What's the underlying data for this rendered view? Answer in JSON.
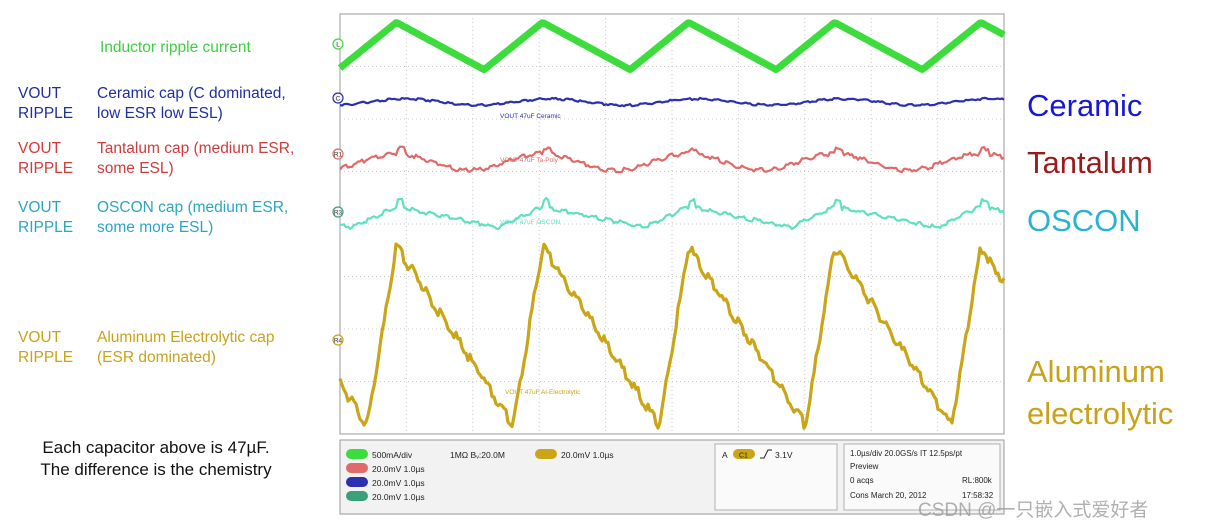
{
  "left_labels": {
    "inductor": {
      "text": "Inductor ripple current",
      "color": "#3ecf3e"
    },
    "rows": [
      {
        "kind1": "VOUT",
        "kind2": "RIPPLE",
        "desc1": "Ceramic cap (C dominated,",
        "desc2": "low ESR low ESL)",
        "color": "#1f2fa0"
      },
      {
        "kind1": "VOUT",
        "kind2": "RIPPLE",
        "desc1": "Tantalum cap (medium ESR,",
        "desc2": "some ESL)",
        "color": "#d23b3b"
      },
      {
        "kind1": "VOUT",
        "kind2": "RIPPLE",
        "desc1": "OSCON cap (medium ESR,",
        "desc2": "some more ESL)",
        "color": "#2aa6c4"
      },
      {
        "kind1": "VOUT",
        "kind2": "RIPPLE",
        "desc1": "Aluminum Electrolytic cap",
        "desc2": "(ESR dominated)",
        "color": "#c9a21a"
      }
    ]
  },
  "note": {
    "line1": "Each capacitor above is 47µF.",
    "line2": "The difference is the chemistry"
  },
  "right_labels": [
    {
      "text": "Ceramic",
      "color": "#1717d6"
    },
    {
      "text": "Tantalum",
      "color": "#9b1b1b"
    },
    {
      "text": "OSCON",
      "color": "#2ab3cf"
    },
    {
      "text": "Aluminum",
      "color": "#c9a21a"
    },
    {
      "text": "electrolytic",
      "color": "#c9a21a"
    }
  ],
  "watermark": "CSDN @一只嵌入式爱好者",
  "chart_data": {
    "type": "line",
    "x_unit": "µs",
    "time_per_div": "1.0µs/div",
    "divisions": 10,
    "grid": true,
    "series": [
      {
        "marker": "L",
        "color": "#3ddc3d",
        "shape": "triangle",
        "period_div": 2.2,
        "peak_div": 0.85,
        "amplitude_div": 0.9
      },
      {
        "marker": "C",
        "name": "VOUT 47uF Ceramic",
        "color": "#2b2fb0",
        "shape": "sine",
        "period_div": 2.2,
        "amplitude_div": 0.12
      },
      {
        "marker": "R1",
        "name": "VOUT 47uF Ta-Poly",
        "color": "#e06a6a",
        "shape": "cusp",
        "period_div": 2.2,
        "amplitude_div": 0.35
      },
      {
        "marker": "R3",
        "name": "VOUT 47uF OSCON",
        "color": "#5fe0c0",
        "shape": "jump",
        "period_div": 2.2,
        "amplitude_div": 0.4
      },
      {
        "marker": "R4",
        "name": "VOUT 47uF Al-Electrolytic",
        "color": "#c9a517",
        "shape": "sawtooth",
        "period_div": 2.2,
        "amplitude_div": 3.4
      }
    ],
    "status": {
      "ch1": "500mA/div",
      "impedance": "1MΩ Bᵥ:20.0M",
      "r4": "20.0mV 1.0µs",
      "r1": "20.0mV 1.0µs",
      "r2": "20.0mV 1.0µs",
      "r3": "20.0mV 1.0µs",
      "trigger_label": "A",
      "trigger_ch": "C1",
      "trigger_level": "3.1V",
      "timebase": "1.0µs/div  20.0GS/s  IT  12.5ps/pt",
      "mode": "Preview",
      "acqs": "0 acqs",
      "rl": "RL:800k",
      "date": "Cons  March 20, 2012",
      "time": "17:58:32"
    }
  }
}
